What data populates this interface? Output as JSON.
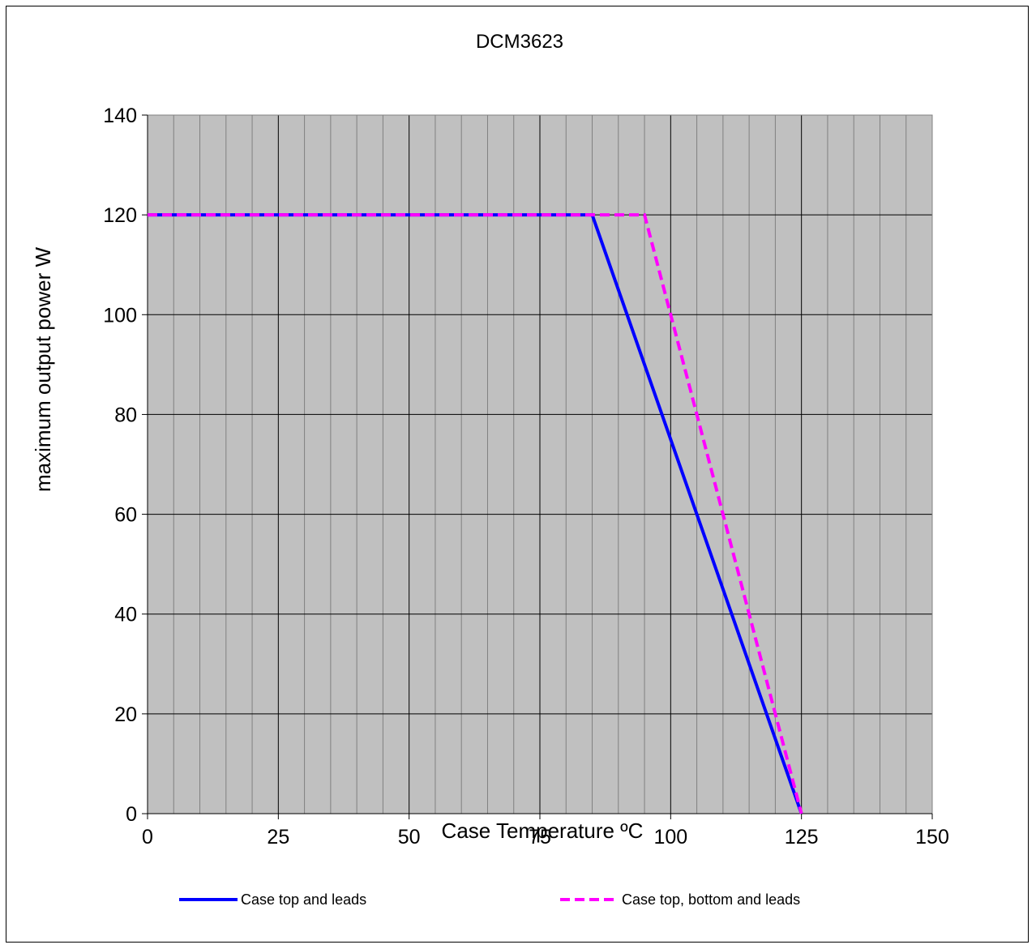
{
  "chart_data": {
    "type": "line",
    "title": "DCM3623",
    "xlabel": "Case Temperature ºC",
    "ylabel": "maximum output power W",
    "xlim": [
      0,
      150
    ],
    "ylim": [
      0,
      140
    ],
    "xticks": [
      0,
      25,
      50,
      75,
      100,
      125,
      150
    ],
    "yticks": [
      0,
      20,
      40,
      60,
      80,
      100,
      120,
      140
    ],
    "x_minor_step": 5,
    "grid": true,
    "plot_background": "#c0c0c0",
    "legend_position": "bottom",
    "series": [
      {
        "name": "Case top and leads",
        "color": "#0000ff",
        "dash": "solid",
        "points": [
          [
            0,
            120
          ],
          [
            85,
            120
          ],
          [
            125,
            0
          ]
        ]
      },
      {
        "name": "Case top, bottom and leads",
        "color": "#ff00ff",
        "dash": "dashed",
        "points": [
          [
            0,
            120
          ],
          [
            95,
            120
          ],
          [
            125,
            0
          ]
        ]
      }
    ]
  }
}
